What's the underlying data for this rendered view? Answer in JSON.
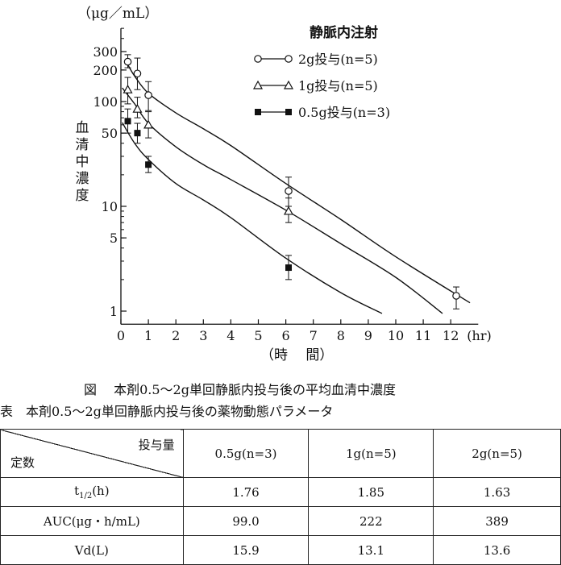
{
  "chart_data": {
    "type": "line",
    "y_scale": "log",
    "ylim": [
      0.75,
      500
    ],
    "xlim": [
      0,
      13
    ],
    "yunit": "（μg／mL）",
    "xunit": "(hr)",
    "xlabel": "（時　 間）",
    "ylabel": "血清中濃度",
    "legend_title": "静脈内注射",
    "legend_position": "top-right",
    "x_ticks": [
      0,
      1,
      2,
      3,
      4,
      5,
      6,
      7,
      8,
      9,
      10,
      11,
      12
    ],
    "x_tick_labels": [
      "0",
      "1",
      "2",
      "3",
      "4",
      "5",
      "6",
      "7",
      "8",
      "9",
      "10",
      "11",
      "12"
    ],
    "y_ticks": [
      1,
      5,
      10,
      50,
      100,
      200,
      300
    ],
    "y_tick_labels": [
      "1",
      "5",
      "10",
      "50",
      "100",
      "200",
      "300"
    ],
    "series": [
      {
        "name": "2g投与(n=5)",
        "marker": "circle-open",
        "points": [
          {
            "x": 0.25,
            "y": 240,
            "err": [
              210,
              280
            ]
          },
          {
            "x": 0.6,
            "y": 185,
            "err": [
              130,
              260
            ]
          },
          {
            "x": 1.0,
            "y": 115,
            "err": [
              82,
              155
            ]
          },
          {
            "x": 6.1,
            "y": 14,
            "err": [
              10,
              19
            ]
          },
          {
            "x": 12.2,
            "y": 1.4,
            "err": [
              1.05,
              1.7
            ]
          }
        ],
        "curve": [
          [
            0.25,
            225
          ],
          [
            0.5,
            175
          ],
          [
            1,
            120
          ],
          [
            2,
            78
          ],
          [
            3,
            55
          ],
          [
            4,
            38
          ],
          [
            6,
            16.5
          ],
          [
            8,
            7.5
          ],
          [
            10,
            3.3
          ],
          [
            12.7,
            1.2
          ]
        ]
      },
      {
        "name": "1g投与(n=5)",
        "marker": "triangle-open",
        "points": [
          {
            "x": 0.25,
            "y": 130,
            "err": [
              95,
              170
            ]
          },
          {
            "x": 0.6,
            "y": 85,
            "err": [
              70,
              110
            ]
          },
          {
            "x": 1.0,
            "y": 60,
            "err": [
              45,
              80
            ]
          },
          {
            "x": 6.1,
            "y": 9,
            "err": [
              7,
              12
            ]
          }
        ],
        "curve": [
          [
            0.05,
            135
          ],
          [
            0.5,
            95
          ],
          [
            1,
            62
          ],
          [
            2,
            37
          ],
          [
            3,
            25
          ],
          [
            4,
            18
          ],
          [
            6,
            9.2
          ],
          [
            8,
            4.4
          ],
          [
            10,
            2.1
          ],
          [
            11.7,
            0.95
          ]
        ]
      },
      {
        "name": "0.5g投与(n=3)",
        "marker": "square-filled",
        "points": [
          {
            "x": 0.25,
            "y": 65,
            "err": [
              50,
              85
            ]
          },
          {
            "x": 0.6,
            "y": 50,
            "err": [
              40,
              62
            ]
          },
          {
            "x": 1.0,
            "y": 25,
            "err": [
              21,
              30
            ]
          },
          {
            "x": 6.1,
            "y": 2.6,
            "err": [
              2.0,
              3.4
            ]
          }
        ],
        "curve": [
          [
            0.05,
            63
          ],
          [
            0.5,
            40
          ],
          [
            1,
            28
          ],
          [
            2,
            16.5
          ],
          [
            3,
            11.5
          ],
          [
            4,
            7.8
          ],
          [
            6,
            3.2
          ],
          [
            8,
            1.5
          ],
          [
            9.5,
            0.95
          ]
        ]
      }
    ]
  },
  "figure_caption": "図　 本剤0.5～2g単回静脈内投与後の平均血清中濃度",
  "table_caption": "表　本剤0.5～2g単回静脈内投与後の薬物動態パラメータ",
  "table": {
    "corner_top": "投与量",
    "corner_bottom": "定数",
    "columns": [
      "0.5g(n=3)",
      "1g(n=5)",
      "2g(n=5)"
    ],
    "rows": [
      {
        "label": "t1/2(h)",
        "label_main": "t",
        "label_sub": "1/2",
        "label_tail": "(h)",
        "values": [
          "1.76",
          "1.85",
          "1.63"
        ]
      },
      {
        "label": "AUC(μg・h/mL)",
        "values": [
          "99.0",
          "222",
          "389"
        ]
      },
      {
        "label": "Vd(L)",
        "values": [
          "15.9",
          "13.1",
          "13.6"
        ]
      }
    ]
  }
}
